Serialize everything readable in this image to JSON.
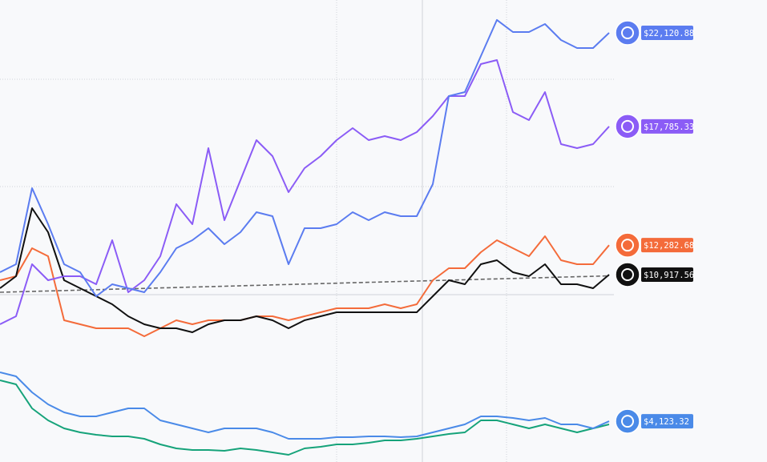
{
  "chart_data": {
    "type": "line",
    "ylim": [
      2235,
      23642
    ],
    "series": [
      {
        "color": "#666666",
        "dashed": true,
        "values": [
          10100,
          10120,
          10140,
          10160,
          10180,
          10200,
          10220,
          10240,
          10260,
          10280,
          10300,
          10320,
          10340,
          10360,
          10380,
          10400,
          10420,
          10440,
          10460,
          10480,
          10500,
          10520,
          10540,
          10560,
          10580,
          10600,
          10620,
          10640,
          10660,
          10680,
          10700,
          10720,
          10740,
          10760,
          10780,
          10800,
          10820,
          10840,
          10860
        ]
      },
      {
        "color": "#16a37a",
        "values": [
          6020,
          5834,
          4721,
          4165,
          3794,
          3608,
          3497,
          3422,
          3422,
          3311,
          3052,
          2866,
          2792,
          2792,
          2755,
          2866,
          2792,
          2681,
          2569,
          2866,
          2940,
          3052,
          3052,
          3126,
          3237,
          3237,
          3311,
          3422,
          3534,
          3608,
          4165,
          4165,
          3979,
          3794,
          3979,
          3794,
          3608,
          3794,
          3979
        ]
      },
      {
        "color": "#4a8ae8",
        "label": "$4,123.32",
        "values": [
          6390,
          6205,
          5463,
          4906,
          4536,
          4350,
          4350,
          4536,
          4721,
          4721,
          4165,
          3979,
          3794,
          3608,
          3794,
          3794,
          3794,
          3608,
          3311,
          3311,
          3311,
          3385,
          3385,
          3422,
          3422,
          3385,
          3422,
          3608,
          3794,
          3979,
          4350,
          4350,
          4276,
          4165,
          4276,
          3979,
          3979,
          3794,
          4123.32
        ]
      },
      {
        "color": "#f46b3a",
        "label": "$12,282.68",
        "values": [
          10657,
          10842,
          12141,
          11770,
          8802,
          8617,
          8431,
          8431,
          8431,
          8060,
          8431,
          8802,
          8617,
          8802,
          8802,
          8802,
          8988,
          8988,
          8802,
          8988,
          9173,
          9358,
          9358,
          9358,
          9544,
          9358,
          9544,
          10657,
          11214,
          11214,
          11956,
          12512,
          12141,
          11770,
          12697,
          11584,
          11399,
          11399,
          12282.68
        ]
      },
      {
        "color": "#111111",
        "label": "$10,917.56",
        "values": [
          10286,
          10842,
          13996,
          12883,
          10657,
          10286,
          9915,
          9544,
          8988,
          8617,
          8431,
          8431,
          8246,
          8617,
          8802,
          8802,
          8988,
          8802,
          8431,
          8802,
          8988,
          9173,
          9173,
          9173,
          9173,
          9173,
          9173,
          9915,
          10657,
          10472,
          11399,
          11584,
          11028,
          10842,
          11399,
          10472,
          10472,
          10286,
          10917.56
        ]
      },
      {
        "color": "#8b5cf6",
        "label": "$17,785.33",
        "values": [
          8617,
          8988,
          11399,
          10657,
          10842,
          10842,
          10472,
          12512,
          10100,
          10657,
          11770,
          14182,
          13254,
          16779,
          13440,
          15295,
          17150,
          16408,
          14738,
          15851,
          16408,
          17150,
          17706,
          17150,
          17335,
          17150,
          17521,
          18263,
          19190,
          19190,
          20674,
          20860,
          18448,
          18077,
          19376,
          16964,
          16779,
          16964,
          17785.33
        ]
      },
      {
        "color": "#5b7cf0",
        "label": "$22,120.88",
        "values": [
          11028,
          11399,
          14924,
          13254,
          11399,
          11028,
          9915,
          10472,
          10286,
          10100,
          11028,
          12141,
          12512,
          13069,
          12326,
          12883,
          13810,
          13625,
          11399,
          13069,
          13069,
          13254,
          13810,
          13440,
          13810,
          13625,
          13625,
          15109,
          19190,
          19376,
          21045,
          22717,
          22158,
          22158,
          22529,
          21787,
          21416,
          21416,
          22120.88
        ]
      }
    ]
  }
}
